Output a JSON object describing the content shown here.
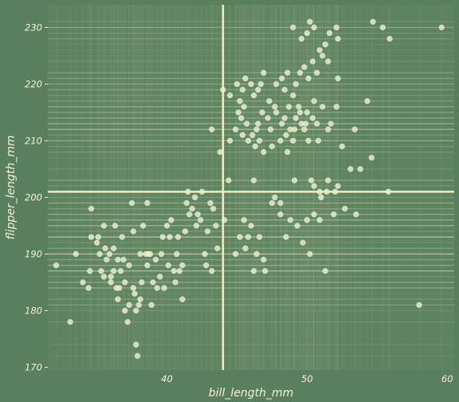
{
  "chart_data": {
    "type": "scatter",
    "title": "",
    "xlabel": "bill_length_mm",
    "ylabel": "flipper_length_mm",
    "xlim": [
      31.5,
      60.5
    ],
    "ylim": [
      169.5,
      234.0
    ],
    "xticks": [
      40,
      50,
      60
    ],
    "yticks": [
      170,
      180,
      190,
      200,
      210,
      220,
      230
    ],
    "grid": false,
    "legend": "none",
    "reference_lines": {
      "x": 44.0,
      "y": 201.0
    },
    "colors": {
      "background": "#5a7f5c",
      "panel": "#5e835f",
      "point_fill": "#e6ecc8",
      "point_stroke": "#ffffff",
      "reference_line": "#efeec0",
      "text": "#f4f1d8"
    },
    "points": [
      [
        32.1,
        188
      ],
      [
        33.1,
        178
      ],
      [
        33.5,
        190
      ],
      [
        34.0,
        185
      ],
      [
        34.4,
        184
      ],
      [
        34.5,
        187
      ],
      [
        34.6,
        193
      ],
      [
        34.6,
        198
      ],
      [
        35.0,
        192
      ],
      [
        35.1,
        193
      ],
      [
        35.2,
        190
      ],
      [
        35.3,
        187
      ],
      [
        35.5,
        186
      ],
      [
        35.5,
        195
      ],
      [
        35.6,
        191
      ],
      [
        35.7,
        189
      ],
      [
        35.9,
        190
      ],
      [
        36.0,
        185
      ],
      [
        36.0,
        186
      ],
      [
        36.2,
        187
      ],
      [
        36.2,
        191
      ],
      [
        36.3,
        195
      ],
      [
        36.4,
        184
      ],
      [
        36.5,
        182
      ],
      [
        36.5,
        189
      ],
      [
        36.6,
        184
      ],
      [
        36.7,
        187
      ],
      [
        36.8,
        193
      ],
      [
        36.9,
        189
      ],
      [
        37.0,
        185
      ],
      [
        37.0,
        180
      ],
      [
        37.2,
        178
      ],
      [
        37.3,
        181
      ],
      [
        37.3,
        188
      ],
      [
        37.5,
        199
      ],
      [
        37.6,
        184
      ],
      [
        37.6,
        194
      ],
      [
        37.7,
        183
      ],
      [
        37.8,
        174
      ],
      [
        37.8,
        180
      ],
      [
        37.9,
        172
      ],
      [
        38.0,
        181
      ],
      [
        38.1,
        182
      ],
      [
        38.1,
        190
      ],
      [
        38.2,
        185
      ],
      [
        38.3,
        195
      ],
      [
        38.5,
        190
      ],
      [
        38.6,
        188
      ],
      [
        38.6,
        199
      ],
      [
        38.7,
        190
      ],
      [
        38.8,
        190
      ],
      [
        38.9,
        181
      ],
      [
        39.0,
        185
      ],
      [
        39.2,
        189
      ],
      [
        39.3,
        184
      ],
      [
        39.5,
        186
      ],
      [
        39.6,
        190
      ],
      [
        39.7,
        193
      ],
      [
        39.8,
        184
      ],
      [
        40.0,
        195
      ],
      [
        40.1,
        188
      ],
      [
        40.2,
        193
      ],
      [
        40.3,
        196
      ],
      [
        40.5,
        187
      ],
      [
        40.6,
        185
      ],
      [
        40.7,
        190
      ],
      [
        40.8,
        193
      ],
      [
        40.9,
        187
      ],
      [
        41.1,
        188
      ],
      [
        41.1,
        182
      ],
      [
        41.3,
        194
      ],
      [
        41.4,
        199
      ],
      [
        41.5,
        201
      ],
      [
        41.6,
        197
      ],
      [
        41.8,
        198
      ],
      [
        42.0,
        200
      ],
      [
        42.1,
        195
      ],
      [
        42.2,
        197
      ],
      [
        42.4,
        196
      ],
      [
        42.5,
        201
      ],
      [
        42.7,
        190
      ],
      [
        42.8,
        188
      ],
      [
        42.9,
        194
      ],
      [
        43.1,
        199
      ],
      [
        43.2,
        187
      ],
      [
        43.3,
        198
      ],
      [
        43.5,
        195
      ],
      [
        43.6,
        191
      ],
      [
        44.1,
        196
      ],
      [
        44.4,
        203
      ],
      [
        44.9,
        190
      ],
      [
        45.2,
        193
      ],
      [
        45.5,
        196
      ],
      [
        45.6,
        191
      ],
      [
        45.8,
        193
      ],
      [
        46.0,
        195
      ],
      [
        46.2,
        187
      ],
      [
        46.4,
        190
      ],
      [
        46.6,
        193
      ],
      [
        46.9,
        189
      ],
      [
        47.0,
        187
      ],
      [
        47.5,
        199
      ],
      [
        48.1,
        199
      ],
      [
        48.5,
        193
      ],
      [
        48.8,
        196
      ],
      [
        49.3,
        195
      ],
      [
        49.7,
        192
      ],
      [
        50.0,
        196
      ],
      [
        50.2,
        190
      ],
      [
        50.5,
        197
      ],
      [
        50.9,
        196
      ],
      [
        51.3,
        187
      ],
      [
        51.4,
        201
      ],
      [
        51.9,
        197
      ],
      [
        52.0,
        201
      ],
      [
        52.7,
        198
      ],
      [
        53.5,
        197
      ],
      [
        55.8,
        201
      ],
      [
        58.0,
        181
      ],
      [
        43.2,
        212
      ],
      [
        43.8,
        208
      ],
      [
        44.5,
        210
      ],
      [
        44.9,
        212
      ],
      [
        45.1,
        215
      ],
      [
        45.3,
        214
      ],
      [
        45.4,
        211
      ],
      [
        45.5,
        216
      ],
      [
        45.7,
        213
      ],
      [
        45.8,
        210
      ],
      [
        46.1,
        211
      ],
      [
        46.3,
        209
      ],
      [
        46.4,
        212
      ],
      [
        46.5,
        213
      ],
      [
        46.6,
        210
      ],
      [
        46.8,
        215
      ],
      [
        46.9,
        208
      ],
      [
        47.2,
        214
      ],
      [
        47.4,
        212
      ],
      [
        47.5,
        209
      ],
      [
        47.7,
        216
      ],
      [
        47.8,
        215
      ],
      [
        48.1,
        210
      ],
      [
        48.2,
        213
      ],
      [
        48.4,
        214
      ],
      [
        48.5,
        211
      ],
      [
        48.6,
        208
      ],
      [
        48.7,
        216
      ],
      [
        48.8,
        212
      ],
      [
        49.0,
        210
      ],
      [
        49.1,
        212
      ],
      [
        49.2,
        214
      ],
      [
        49.4,
        216
      ],
      [
        49.5,
        215
      ],
      [
        49.6,
        213
      ],
      [
        49.8,
        212
      ],
      [
        50.0,
        215
      ],
      [
        50.1,
        210
      ],
      [
        50.4,
        214
      ],
      [
        50.5,
        217
      ],
      [
        50.7,
        213
      ],
      [
        50.8,
        210
      ],
      [
        51.1,
        216
      ],
      [
        51.5,
        212
      ],
      [
        51.7,
        213
      ],
      [
        52.1,
        216
      ],
      [
        52.5,
        209
      ],
      [
        53.4,
        212
      ],
      [
        44.0,
        219
      ],
      [
        44.5,
        218
      ],
      [
        45.0,
        220
      ],
      [
        45.2,
        217
      ],
      [
        45.4,
        219
      ],
      [
        45.6,
        221
      ],
      [
        46.0,
        220
      ],
      [
        46.2,
        218
      ],
      [
        46.5,
        219
      ],
      [
        46.7,
        220
      ],
      [
        46.9,
        222
      ],
      [
        47.3,
        217
      ],
      [
        47.8,
        220
      ],
      [
        48.2,
        221
      ],
      [
        48.4,
        219
      ],
      [
        48.6,
        222
      ],
      [
        49.0,
        218
      ],
      [
        49.2,
        220
      ],
      [
        49.5,
        222
      ],
      [
        49.8,
        223
      ],
      [
        50.1,
        221
      ],
      [
        50.4,
        224
      ],
      [
        50.7,
        222
      ],
      [
        50.9,
        226
      ],
      [
        51.1,
        225
      ],
      [
        51.3,
        227
      ],
      [
        51.5,
        224
      ],
      [
        52.2,
        221
      ],
      [
        54.3,
        217
      ],
      [
        49.0,
        230
      ],
      [
        49.6,
        228
      ],
      [
        50.0,
        229
      ],
      [
        50.2,
        231
      ],
      [
        50.5,
        230
      ],
      [
        51.6,
        229
      ],
      [
        52.1,
        230
      ],
      [
        52.2,
        228
      ],
      [
        54.7,
        231
      ],
      [
        55.4,
        230
      ],
      [
        55.9,
        228
      ],
      [
        59.6,
        230
      ],
      [
        46.2,
        203
      ],
      [
        47.7,
        200
      ],
      [
        48.1,
        197
      ],
      [
        49.1,
        203
      ],
      [
        50.5,
        202
      ],
      [
        51.0,
        200
      ],
      [
        51.5,
        203
      ],
      [
        52.2,
        202
      ],
      [
        53.1,
        205
      ],
      [
        53.8,
        205
      ],
      [
        54.6,
        207
      ],
      [
        49.9,
        213
      ],
      [
        50.3,
        203
      ],
      [
        50.9,
        201
      ]
    ]
  }
}
